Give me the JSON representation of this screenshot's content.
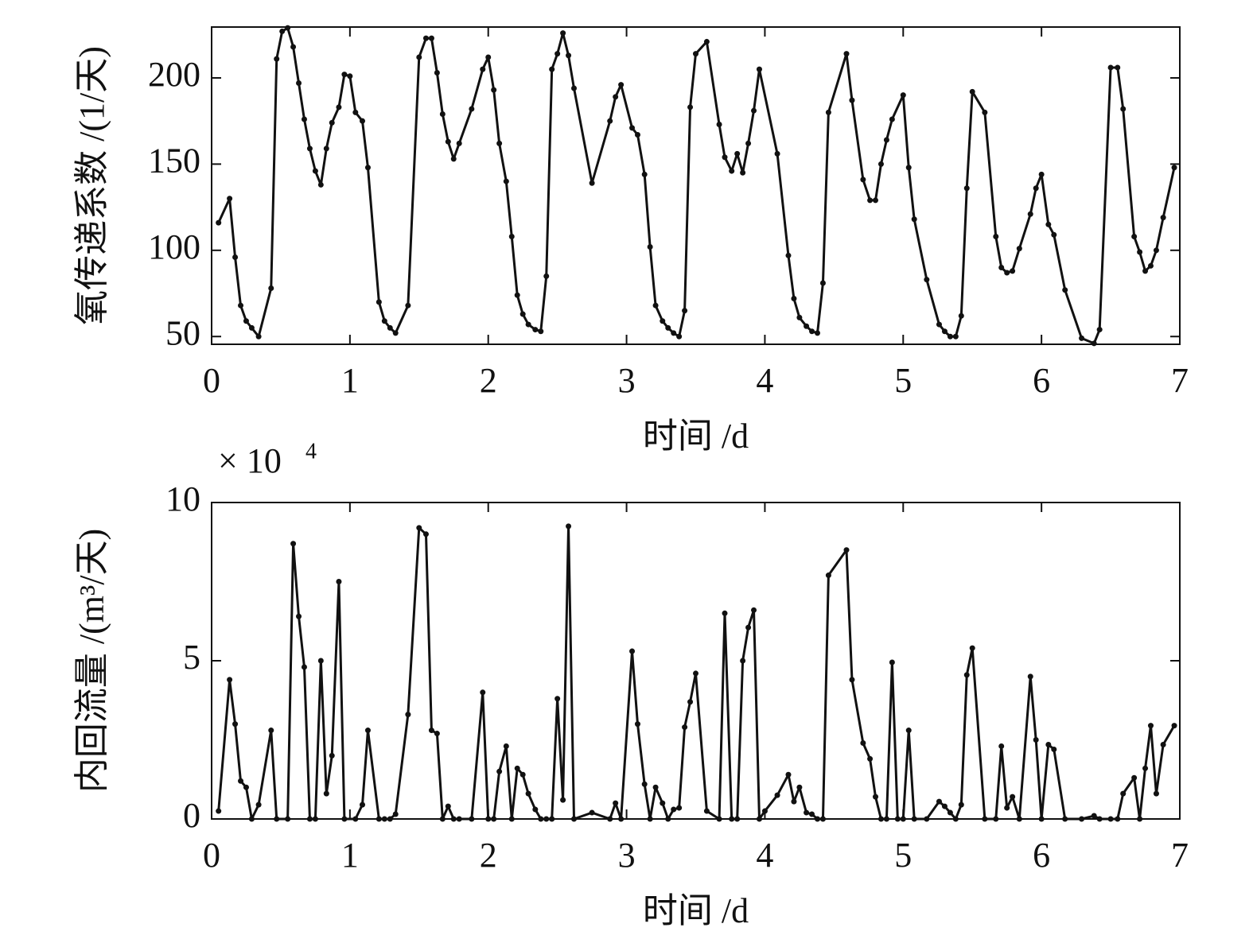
{
  "chart_data": [
    {
      "type": "line",
      "xlabel": "时间 /d",
      "ylabel": "氧传递系数 /(1/天)",
      "color": "#111111",
      "xlim": [
        0,
        7
      ],
      "xticks": [
        0,
        1,
        2,
        3,
        4,
        5,
        6,
        7
      ],
      "ylim": [
        45.5,
        229.5
      ],
      "yticks": [
        50,
        100,
        150,
        200
      ],
      "x": [
        0.05,
        0.13,
        0.17,
        0.21,
        0.25,
        0.29,
        0.34,
        0.43,
        0.47,
        0.51,
        0.55,
        0.59,
        0.63,
        0.67,
        0.71,
        0.75,
        0.79,
        0.83,
        0.87,
        0.92,
        0.96,
        1.0,
        1.04,
        1.09,
        1.13,
        1.21,
        1.25,
        1.29,
        1.33,
        1.42,
        1.5,
        1.55,
        1.59,
        1.63,
        1.67,
        1.71,
        1.75,
        1.79,
        1.88,
        1.96,
        2.0,
        2.04,
        2.08,
        2.13,
        2.17,
        2.21,
        2.25,
        2.29,
        2.34,
        2.38,
        2.42,
        2.46,
        2.5,
        2.54,
        2.58,
        2.62,
        2.75,
        2.88,
        2.92,
        2.96,
        3.04,
        3.08,
        3.13,
        3.17,
        3.21,
        3.26,
        3.3,
        3.34,
        3.38,
        3.42,
        3.46,
        3.5,
        3.58,
        3.67,
        3.71,
        3.76,
        3.8,
        3.84,
        3.88,
        3.92,
        3.96,
        4.09,
        4.17,
        4.21,
        4.25,
        4.3,
        4.34,
        4.38,
        4.42,
        4.46,
        4.59,
        4.63,
        4.71,
        4.76,
        4.8,
        4.84,
        4.88,
        4.92,
        5.0,
        5.04,
        5.08,
        5.17,
        5.26,
        5.3,
        5.34,
        5.38,
        5.42,
        5.46,
        5.5,
        5.59,
        5.67,
        5.71,
        5.75,
        5.79,
        5.84,
        5.92,
        5.96,
        6.0,
        6.05,
        6.09,
        6.17,
        6.29,
        6.38,
        6.42,
        6.5,
        6.55,
        6.59,
        6.67,
        6.71,
        6.75,
        6.79,
        6.83,
        6.88,
        6.96
      ],
      "values": [
        116,
        130,
        96,
        68,
        59,
        55,
        50,
        78,
        211,
        227,
        229,
        218,
        197,
        176,
        159,
        146,
        138,
        159,
        174,
        183,
        202,
        201,
        180,
        175,
        148,
        70,
        59,
        55,
        52,
        68,
        212,
        223,
        223,
        203,
        179,
        163,
        153,
        162,
        182,
        205,
        212,
        193,
        162,
        140,
        108,
        74,
        63,
        57,
        54,
        53,
        85,
        205,
        214,
        226,
        213,
        194,
        139,
        175,
        189,
        196,
        171,
        167,
        144,
        102,
        68,
        59,
        55,
        52,
        50,
        65,
        183,
        214,
        221,
        173,
        154,
        146,
        156,
        145,
        162,
        181,
        205,
        156,
        97,
        72,
        61,
        56,
        53,
        52,
        81,
        180,
        214,
        187,
        141,
        129,
        129,
        150,
        164,
        176,
        190,
        148,
        118,
        83,
        57,
        53,
        50,
        50,
        62,
        136,
        192,
        180,
        108,
        90,
        87,
        88,
        101,
        121,
        136,
        144,
        115,
        109,
        77,
        49,
        46,
        54,
        206,
        206,
        182,
        108,
        99,
        88,
        91,
        100,
        119,
        148
      ]
    },
    {
      "type": "line",
      "xlabel": "时间 /d",
      "ylabel": "内回流量 /(m³/天)",
      "multiplier": "× 10",
      "multiplier_exponent": "4",
      "color": "#111111",
      "xlim": [
        0,
        7
      ],
      "xticks": [
        0,
        1,
        2,
        3,
        4,
        5,
        6,
        7
      ],
      "ylim": [
        0,
        10
      ],
      "yticks": [
        0,
        5,
        10
      ],
      "x": [
        0.05,
        0.13,
        0.17,
        0.21,
        0.25,
        0.29,
        0.34,
        0.43,
        0.47,
        0.55,
        0.59,
        0.63,
        0.67,
        0.71,
        0.75,
        0.79,
        0.83,
        0.87,
        0.92,
        0.96,
        1.04,
        1.09,
        1.13,
        1.21,
        1.25,
        1.29,
        1.33,
        1.42,
        1.5,
        1.55,
        1.59,
        1.63,
        1.67,
        1.71,
        1.75,
        1.79,
        1.88,
        1.96,
        2.0,
        2.04,
        2.08,
        2.13,
        2.17,
        2.21,
        2.25,
        2.29,
        2.34,
        2.38,
        2.42,
        2.46,
        2.5,
        2.54,
        2.58,
        2.62,
        2.75,
        2.88,
        2.92,
        2.96,
        3.04,
        3.08,
        3.13,
        3.17,
        3.21,
        3.26,
        3.3,
        3.34,
        3.38,
        3.42,
        3.46,
        3.5,
        3.58,
        3.67,
        3.71,
        3.76,
        3.8,
        3.84,
        3.88,
        3.92,
        3.96,
        4.0,
        4.09,
        4.17,
        4.21,
        4.25,
        4.3,
        4.34,
        4.38,
        4.42,
        4.46,
        4.59,
        4.63,
        4.71,
        4.76,
        4.8,
        4.84,
        4.88,
        4.92,
        4.96,
        5.0,
        5.04,
        5.08,
        5.17,
        5.26,
        5.3,
        5.34,
        5.38,
        5.42,
        5.46,
        5.5,
        5.59,
        5.67,
        5.71,
        5.75,
        5.79,
        5.84,
        5.92,
        5.96,
        6.0,
        6.05,
        6.09,
        6.17,
        6.29,
        6.38,
        6.42,
        6.5,
        6.55,
        6.59,
        6.67,
        6.71,
        6.75,
        6.79,
        6.83,
        6.88,
        6.96
      ],
      "values": [
        0.25,
        4.4,
        3.0,
        1.2,
        1.0,
        0,
        0.45,
        2.8,
        0,
        0,
        8.7,
        6.4,
        4.8,
        0,
        0,
        5.0,
        0.8,
        2.0,
        7.5,
        0,
        0,
        0.45,
        2.8,
        0,
        0,
        0,
        0.15,
        3.3,
        9.2,
        9.0,
        2.8,
        2.7,
        0,
        0.4,
        0,
        0,
        0,
        4.0,
        0,
        0,
        1.5,
        2.3,
        0,
        1.6,
        1.4,
        0.8,
        0.3,
        0,
        0,
        0,
        3.8,
        0.6,
        9.25,
        0,
        0.2,
        0,
        0.5,
        0,
        5.3,
        3.0,
        1.1,
        0,
        1.0,
        0.5,
        0,
        0.3,
        0.35,
        2.9,
        3.7,
        4.6,
        0.25,
        0,
        6.5,
        0,
        0,
        5.0,
        6.05,
        6.6,
        0,
        0.25,
        0.75,
        1.4,
        0.55,
        1.0,
        0.2,
        0.15,
        0,
        0,
        7.7,
        8.5,
        4.4,
        2.4,
        1.9,
        0.7,
        0,
        0,
        4.95,
        0,
        0,
        2.8,
        0,
        0,
        0.55,
        0.4,
        0.2,
        0,
        0.45,
        4.55,
        5.4,
        0,
        0,
        2.3,
        0.35,
        0.7,
        0,
        4.5,
        2.5,
        0,
        2.35,
        2.2,
        0,
        0,
        0.1,
        0,
        0,
        0,
        0.8,
        1.3,
        0,
        1.6,
        2.95,
        0.8,
        2.35,
        2.95
      ]
    }
  ]
}
